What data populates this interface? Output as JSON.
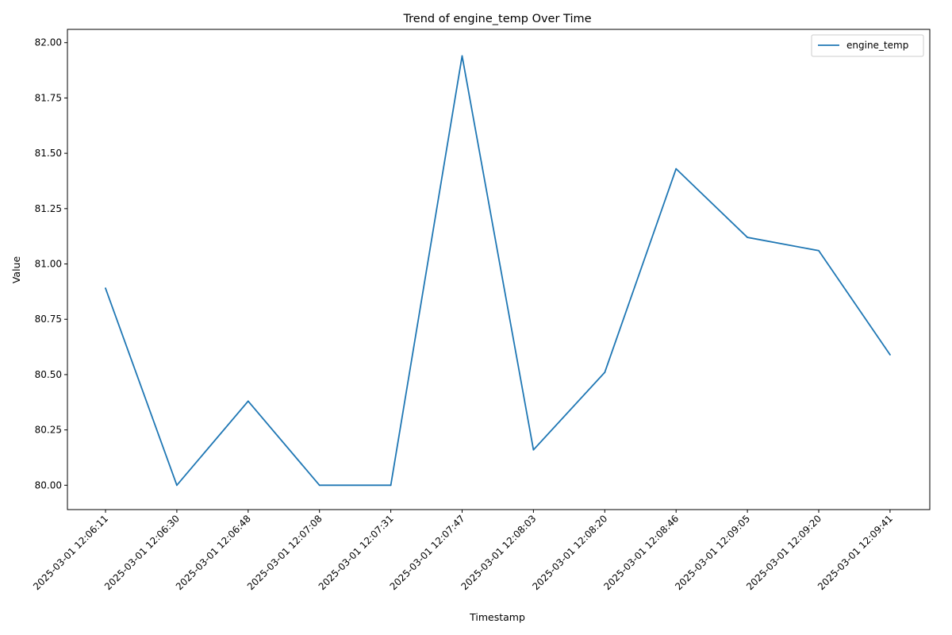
{
  "chart_data": {
    "type": "line",
    "title": "Trend of engine_temp Over Time",
    "xlabel": "Timestamp",
    "ylabel": "Value",
    "categories": [
      "2025-03-01 12:06:11",
      "2025-03-01 12:06:30",
      "2025-03-01 12:06:48",
      "2025-03-01 12:07:08",
      "2025-03-01 12:07:31",
      "2025-03-01 12:07:47",
      "2025-03-01 12:08:03",
      "2025-03-01 12:08:20",
      "2025-03-01 12:08:46",
      "2025-03-01 12:09:05",
      "2025-03-01 12:09:20",
      "2025-03-01 12:09:41"
    ],
    "series": [
      {
        "name": "engine_temp",
        "color": "#1f77b4",
        "values": [
          80.89,
          80.0,
          80.38,
          80.0,
          80.0,
          81.94,
          80.16,
          80.51,
          81.43,
          81.12,
          81.06,
          80.59
        ]
      }
    ],
    "ylim": [
      79.89,
      82.06
    ],
    "yticks": [
      "80.00",
      "80.25",
      "80.50",
      "80.75",
      "81.00",
      "81.25",
      "81.50",
      "81.75",
      "82.00"
    ],
    "grid": false,
    "legend": "top-right"
  }
}
